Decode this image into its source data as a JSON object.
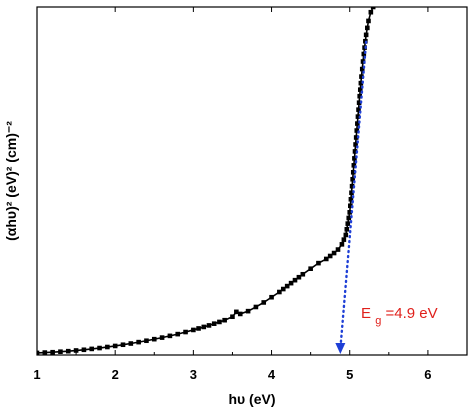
{
  "chart_data": {
    "type": "scatter",
    "xlabel": "hυ (eV)",
    "ylabel": "(αhυ)² (eV)² (cm)⁻²",
    "xlim": [
      1.0,
      6.5
    ],
    "ylim": [
      0,
      100
    ],
    "xticks": [
      1,
      2,
      3,
      4,
      5,
      6
    ],
    "yticks_shown": false,
    "grid": false,
    "series": [
      {
        "x": [
          1.0,
          1.2,
          1.4,
          1.6,
          1.8,
          2.0,
          2.2,
          2.4,
          2.6,
          2.8,
          3.0,
          3.2,
          3.4,
          3.5,
          3.55,
          3.6,
          3.7,
          3.8,
          3.9,
          4.0,
          4.1,
          4.2,
          4.3,
          4.4,
          4.5,
          4.6,
          4.7,
          4.8,
          4.85,
          4.9,
          4.95,
          5.0,
          5.03,
          5.06,
          5.09,
          5.12,
          5.15,
          5.18,
          5.21,
          5.24,
          5.27,
          5.3,
          5.33
        ],
        "y": [
          0.6,
          0.8,
          1.1,
          1.5,
          2.0,
          2.6,
          3.3,
          4.1,
          5.0,
          6.0,
          7.2,
          8.5,
          10.0,
          11.0,
          12.4,
          11.8,
          12.6,
          13.8,
          15.1,
          16.6,
          18.1,
          19.8,
          21.5,
          23.2,
          24.8,
          26.4,
          27.6,
          29.3,
          30.3,
          31.8,
          34.5,
          41.0,
          48.5,
          56.5,
          64.5,
          72.5,
          80.0,
          86.5,
          92.0,
          96.0,
          98.5,
          100.0,
          101.5
        ]
      }
    ],
    "annotation": {
      "symbol_main": "E",
      "symbol_sub": "g",
      "text": "=4.9 eV",
      "color": "#e0201b"
    },
    "tangent": {
      "x": [
        4.88,
        5.21
      ],
      "y": [
        0,
        90
      ],
      "color": "#1e3fd6"
    },
    "arrow_x": 4.88,
    "line_color": "#000000",
    "marker_color": "#000000"
  }
}
